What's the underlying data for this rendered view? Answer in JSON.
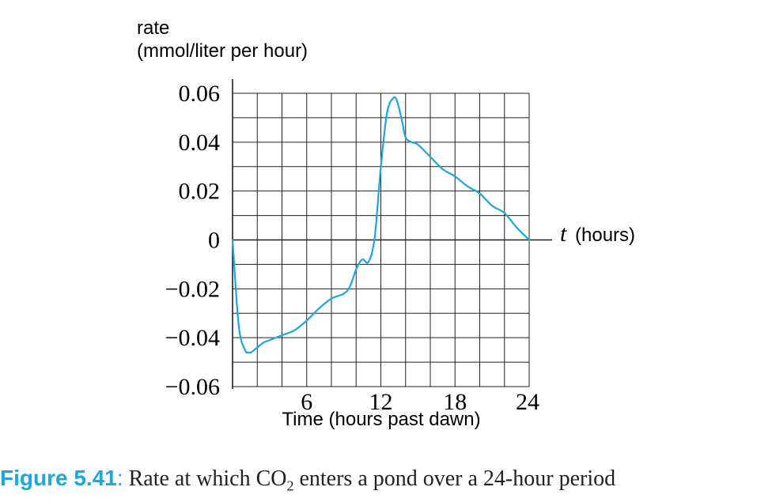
{
  "chart_data": {
    "type": "line",
    "ylabel_line1": "rate",
    "ylabel_line2": "(mmol/liter per hour)",
    "xlabel": "Time (hours past dawn)",
    "t_label_var": "t",
    "t_label_unit": "(hours)",
    "xlim": [
      0,
      24
    ],
    "ylim": [
      -0.06,
      0.06
    ],
    "x_grid_step": 2,
    "y_grid_step": 0.01,
    "grid": true,
    "x_ticks": [
      6,
      12,
      18,
      24
    ],
    "x_tick_labels": [
      "6",
      "12",
      "18",
      "24"
    ],
    "y_ticks": [
      0.06,
      0.04,
      0.02,
      0,
      -0.02,
      -0.04,
      -0.06
    ],
    "y_tick_labels": [
      "0.06",
      "0.04",
      "0.02",
      "0",
      "−0.02",
      "−0.04",
      "−0.06"
    ],
    "series": [
      {
        "color": "#1aa7e0",
        "x": [
          0,
          0.5,
          1.0,
          1.3,
          1.5,
          2.0,
          2.5,
          3.0,
          4.0,
          5.0,
          6.0,
          7.0,
          8.0,
          9.0,
          9.5,
          10.0,
          10.5,
          11.0,
          11.5,
          12.0,
          12.5,
          13.0,
          13.3,
          13.7,
          14.0,
          14.5,
          15.0,
          16.0,
          17.0,
          18.0,
          19.0,
          20.0,
          21.0,
          22.0,
          23.0,
          24.0
        ],
        "y": [
          0,
          -0.035,
          -0.045,
          -0.046,
          -0.046,
          -0.044,
          -0.042,
          -0.041,
          -0.039,
          -0.037,
          -0.033,
          -0.028,
          -0.024,
          -0.022,
          -0.019,
          -0.012,
          -0.008,
          -0.009,
          0.001,
          0.03,
          0.052,
          0.058,
          0.057,
          0.049,
          0.042,
          0.04,
          0.039,
          0.034,
          0.029,
          0.026,
          0.022,
          0.019,
          0.014,
          0.011,
          0.005,
          0.0
        ]
      }
    ]
  },
  "caption": {
    "label": "Figure 5.41",
    "colon": ":",
    "text_before": " Rate at which CO",
    "subscript": "2",
    "text_after": " enters a pond over a 24-hour period",
    "label_color": "#1aa7e0"
  }
}
